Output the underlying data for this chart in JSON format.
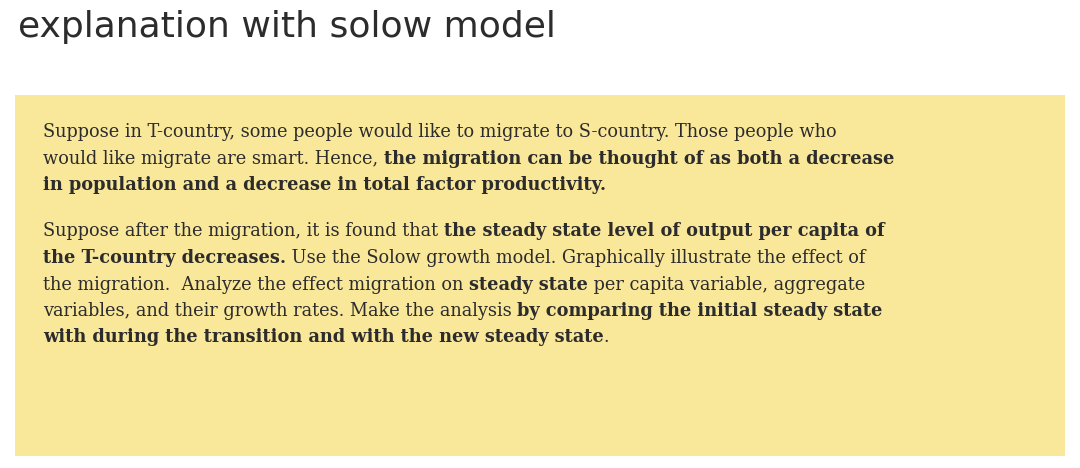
{
  "title": "explanation with solow model",
  "title_fontsize": 26,
  "title_color": "#2c2c2c",
  "box_bg_color": "#FAE89A",
  "text_color": "#2c2c2c",
  "body_fontsize": 12.8,
  "fig_width": 10.8,
  "fig_height": 4.68,
  "fig_dpi": 100,
  "bg_color": "#ffffff",
  "lines_p1": [
    [
      [
        "Suppose in T-country, some people would like to migrate to S-country. Those people who",
        false
      ]
    ],
    [
      [
        "would like migrate are smart. Hence, ",
        false
      ],
      [
        "the migration can be thought of as both a decrease",
        true
      ]
    ],
    [
      [
        "in population and a decrease in total factor productivity.",
        true
      ]
    ]
  ],
  "lines_p2": [
    [
      [
        "Suppose after the migration, it is found that ",
        false
      ],
      [
        "the steady state level of output per capita of",
        true
      ]
    ],
    [
      [
        "the T-country decreases.",
        true
      ],
      [
        " Use the Solow growth model. Graphically illustrate the effect of",
        false
      ]
    ],
    [
      [
        "the migration.  Analyze the effect migration on ",
        false
      ],
      [
        "steady state",
        true
      ],
      [
        " per capita variable, aggregate",
        false
      ]
    ],
    [
      [
        "variables, and their growth rates. Make the analysis ",
        false
      ],
      [
        "by comparing the initial steady state",
        true
      ]
    ],
    [
      [
        "with during the transition and with the new steady state",
        true
      ],
      [
        ".",
        false
      ]
    ]
  ]
}
